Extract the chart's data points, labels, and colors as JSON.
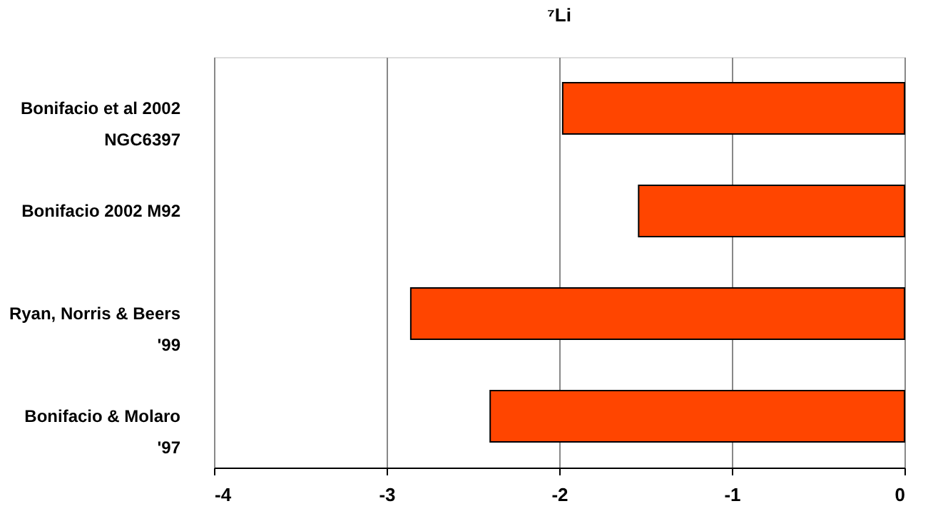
{
  "chart_data": {
    "type": "bar",
    "orientation": "horizontal",
    "title": "⁷Li",
    "categories": [
      "Bonifacio et al 2002\nNGC6397",
      "Bonifacio 2002 M92",
      "Ryan, Norris & Beers\n'99",
      "Bonifacio & Molaro\n'97"
    ],
    "values": [
      -1.98,
      -1.54,
      -2.86,
      -2.4
    ],
    "color": "#ff4500",
    "xlim": [
      -4,
      0
    ],
    "xticks": [
      -4,
      -3,
      -2,
      -1,
      0
    ],
    "grid": "x"
  }
}
